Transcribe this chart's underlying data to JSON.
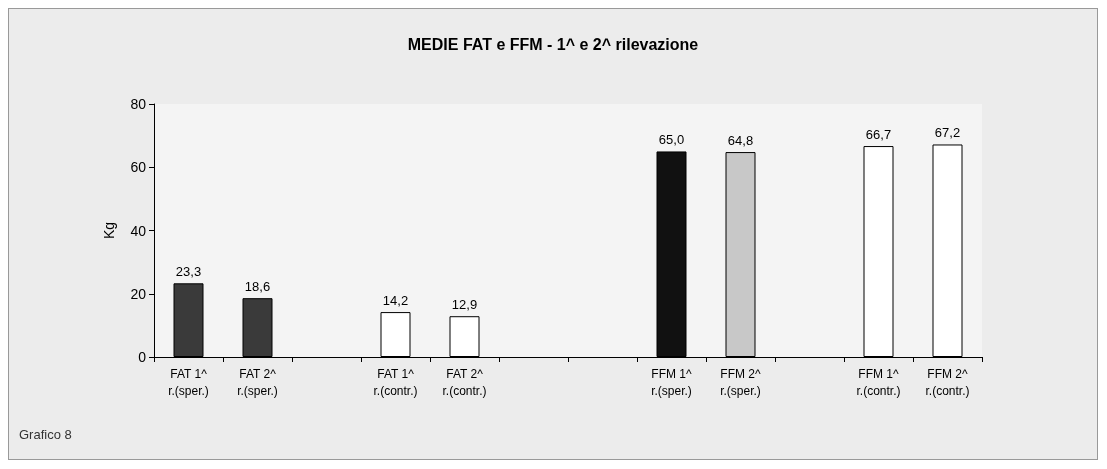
{
  "chart_data": {
    "type": "bar",
    "title": "MEDIE FAT e FFM - 1^ e 2^ rilevazione",
    "ylabel": "Kg",
    "categories": [
      "FAT 1^\nr.(sper.)",
      "FAT 2^\nr.(sper.)",
      null,
      "FAT 1^\nr.(contr.)",
      "FAT 2^\nr.(contr.)",
      null,
      null,
      "FFM 1^\nr.(sper.)",
      "FFM 2^\nr.(sper.)",
      null,
      "FFM 1^\nr.(contr.)",
      "FFM 2^\nr.(contr.)"
    ],
    "values": [
      23.3,
      18.6,
      null,
      14.2,
      12.9,
      null,
      null,
      65.0,
      64.8,
      null,
      66.7,
      67.2
    ],
    "value_labels": [
      "23,3",
      "18,6",
      null,
      "14,2",
      "12,9",
      null,
      null,
      "65,0",
      "64,8",
      null,
      "66,7",
      "67,2"
    ],
    "colors": [
      "#3a3a3a",
      "#3a3a3a",
      "#ffffff",
      "#ffffff",
      "#ffffff",
      "#ffffff",
      "#ffffff",
      "#111111",
      "#c8c8c8",
      "#ffffff",
      "#ffffff",
      "#ffffff"
    ],
    "ylim": [
      0,
      80
    ],
    "yticks": [
      0,
      20,
      40,
      60,
      80
    ],
    "grid": false,
    "annotations": [
      "Grafico 8"
    ]
  }
}
